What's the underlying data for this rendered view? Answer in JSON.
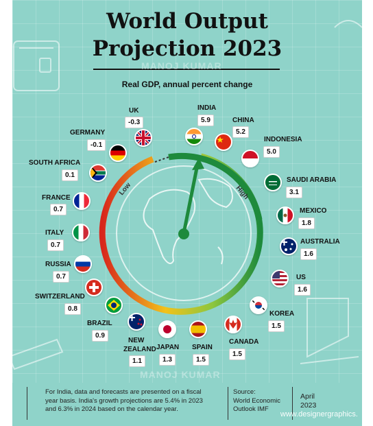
{
  "title_line1": "World Output",
  "title_line2": "Projection 2023",
  "subtitle": "Real GDP, annual percent change",
  "watermark": "MANOJ KUMAR",
  "gauge": {
    "low_label": "Low",
    "high_label": "High"
  },
  "chart_data": {
    "type": "gauge",
    "title": "World Output Projection 2023",
    "subtitle": "Real GDP, annual percent change",
    "countries": [
      {
        "name": "UK",
        "value": -0.3,
        "label": "-0.3"
      },
      {
        "name": "GERMANY",
        "value": -0.1,
        "label": "-0.1"
      },
      {
        "name": "SOUTH AFRICA",
        "value": 0.1,
        "label": "0.1"
      },
      {
        "name": "FRANCE",
        "value": 0.7,
        "label": "0.7"
      },
      {
        "name": "ITALY",
        "value": 0.7,
        "label": "0.7"
      },
      {
        "name": "RUSSIA",
        "value": 0.7,
        "label": "0.7"
      },
      {
        "name": "SWITZERLAND",
        "value": 0.8,
        "label": "0.8"
      },
      {
        "name": "BRAZIL",
        "value": 0.9,
        "label": "0.9"
      },
      {
        "name": "NEW ZEALAND",
        "value": 1.1,
        "label": "1.1"
      },
      {
        "name": "JAPAN",
        "value": 1.3,
        "label": "1.3"
      },
      {
        "name": "SPAIN",
        "value": 1.5,
        "label": "1.5"
      },
      {
        "name": "CANADA",
        "value": 1.5,
        "label": "1.5"
      },
      {
        "name": "KOREA",
        "value": 1.5,
        "label": "1.5"
      },
      {
        "name": "US",
        "value": 1.6,
        "label": "1.6"
      },
      {
        "name": "AUSTRALIA",
        "value": 1.6,
        "label": "1.6"
      },
      {
        "name": "MEXICO",
        "value": 1.8,
        "label": "1.8"
      },
      {
        "name": "SAUDI ARABIA",
        "value": 3.1,
        "label": "3.1"
      },
      {
        "name": "INDONESIA",
        "value": 5.0,
        "label": "5.0"
      },
      {
        "name": "CHINA",
        "value": 5.2,
        "label": "5.2"
      },
      {
        "name": "INDIA",
        "value": 5.9,
        "label": "5.9"
      }
    ],
    "colors": {
      "background": "#8fd3c9",
      "low": "#d8261c",
      "mid": "#f2c21b",
      "high": "#1e8a3c"
    }
  },
  "footer": {
    "note_line1": "For India, data and forecasts are presented on a fiscal",
    "note_line2": "year basis. India's growth projections are 5.4% in 2023",
    "note_line3": "and 6.3% in 2024 based on the calendar year.",
    "source_line1": "Source:",
    "source_line2": "World Economic",
    "source_line3": "Outlook IMF",
    "date_line1": "April",
    "date_line2": "2023",
    "website": "www.designergraphics."
  }
}
